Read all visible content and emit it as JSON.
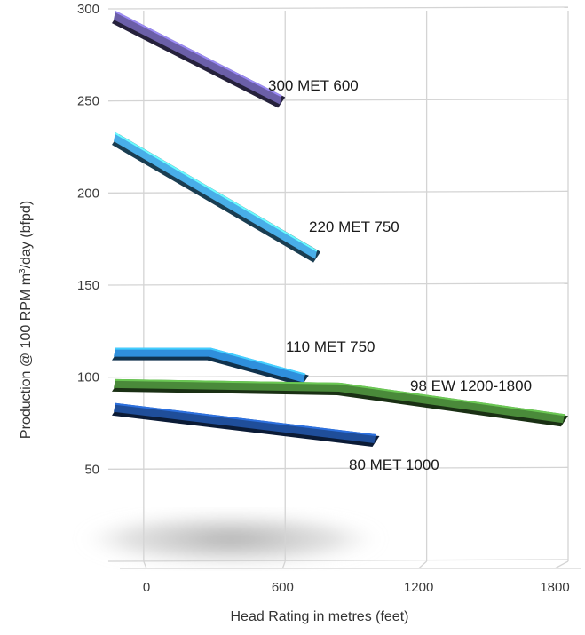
{
  "chart_data": {
    "type": "line",
    "style": "3d-ribbons",
    "xlabel": "Head Rating in metres (feet)",
    "ylabel_main": "Production @ 100 RPM m",
    "ylabel_sup": "3",
    "ylabel_rest": "/day (bfpd)",
    "x_ticks": [
      0,
      600,
      1200,
      1800
    ],
    "y_ticks": [
      50,
      100,
      150,
      200,
      250,
      300
    ],
    "xlim": [
      0,
      1800
    ],
    "ylim": [
      0,
      300
    ],
    "grid": true,
    "series": [
      {
        "name": "300 MET 600",
        "x": [
          -150,
          600
        ],
        "y": [
          298,
          252
        ],
        "color": "#6b5fa8"
      },
      {
        "name": "220 MET 750",
        "x": [
          -150,
          750
        ],
        "y": [
          232,
          168
        ],
        "color": "#49aee8"
      },
      {
        "name": "110 MET 750",
        "x": [
          -150,
          300,
          700
        ],
        "y": [
          115,
          115,
          101
        ],
        "color": "#2f8fdc"
      },
      {
        "name": "98 EW 1200-1800",
        "x": [
          -150,
          850,
          1800
        ],
        "y": [
          98,
          96,
          79
        ],
        "color": "#4a8a3a"
      },
      {
        "name": "80 MET 1000",
        "x": [
          -150,
          1000
        ],
        "y": [
          85,
          68
        ],
        "color": "#1f4e9a"
      }
    ]
  }
}
